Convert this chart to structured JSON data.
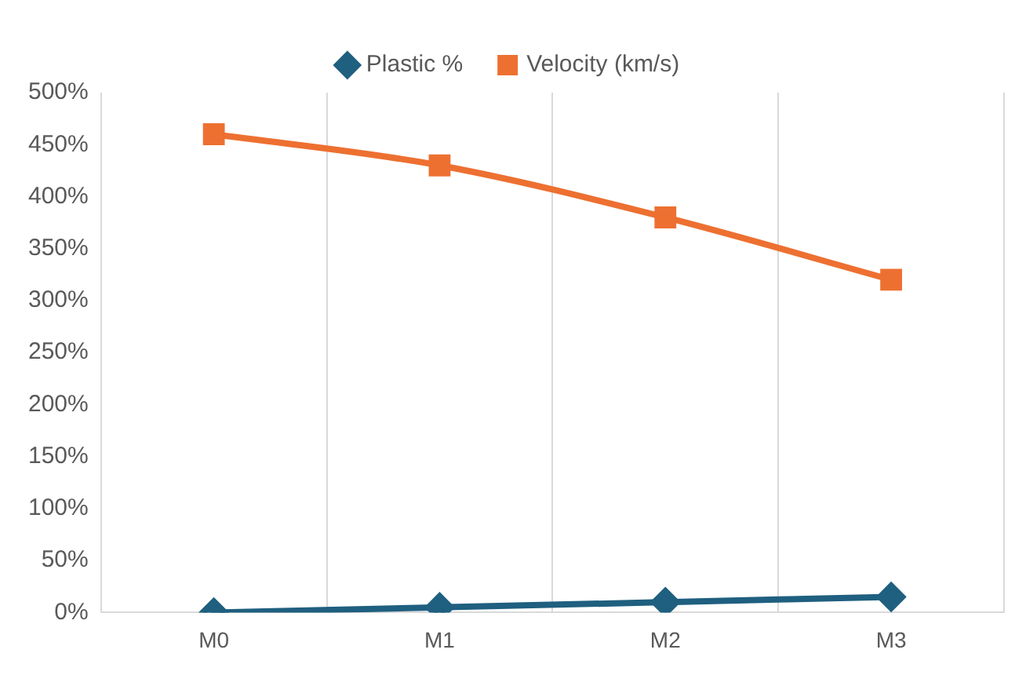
{
  "chart_data": {
    "type": "line",
    "categories": [
      "M0",
      "M1",
      "M2",
      "M3"
    ],
    "series": [
      {
        "name": "Plastic %",
        "color": "#1f5f7f",
        "values": [
          0,
          5,
          10,
          15
        ],
        "marker": "diamond"
      },
      {
        "name": "Velocity (km/s)",
        "color": "#ed7031",
        "values": [
          460,
          430,
          380,
          320
        ],
        "marker": "square"
      }
    ],
    "ylim": [
      0,
      500
    ],
    "yticks": [
      {
        "value": 0,
        "label": "0%"
      },
      {
        "value": 50,
        "label": "50%"
      },
      {
        "value": 100,
        "label": "100%"
      },
      {
        "value": 150,
        "label": "150%"
      },
      {
        "value": 200,
        "label": "200%"
      },
      {
        "value": 250,
        "label": "250%"
      },
      {
        "value": 300,
        "label": "300%"
      },
      {
        "value": 350,
        "label": "350%"
      },
      {
        "value": 400,
        "label": "400%"
      },
      {
        "value": 450,
        "label": "450%"
      },
      {
        "value": 500,
        "label": "500%"
      }
    ],
    "grid": "x",
    "legend": "top",
    "line_style": "solid"
  }
}
